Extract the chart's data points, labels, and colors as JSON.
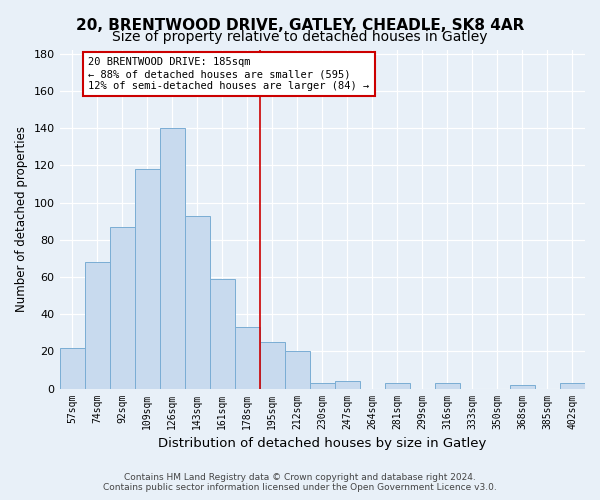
{
  "title": "20, BRENTWOOD DRIVE, GATLEY, CHEADLE, SK8 4AR",
  "subtitle": "Size of property relative to detached houses in Gatley",
  "xlabel": "Distribution of detached houses by size in Gatley",
  "ylabel": "Number of detached properties",
  "categories": [
    "57sqm",
    "74sqm",
    "92sqm",
    "109sqm",
    "126sqm",
    "143sqm",
    "161sqm",
    "178sqm",
    "195sqm",
    "212sqm",
    "230sqm",
    "247sqm",
    "264sqm",
    "281sqm",
    "299sqm",
    "316sqm",
    "333sqm",
    "350sqm",
    "368sqm",
    "385sqm",
    "402sqm"
  ],
  "values": [
    22,
    68,
    87,
    118,
    140,
    93,
    59,
    33,
    25,
    20,
    3,
    4,
    0,
    3,
    0,
    3,
    0,
    0,
    2,
    0,
    3
  ],
  "bar_color": "#c8daee",
  "bar_edge_color": "#7aadd4",
  "vline_x_index": 7.5,
  "vline_color": "#cc0000",
  "annotation_text": "20 BRENTWOOD DRIVE: 185sqm\n← 88% of detached houses are smaller (595)\n12% of semi-detached houses are larger (84) →",
  "annotation_box_color": "#ffffff",
  "annotation_box_edge": "#cc0000",
  "ylim": [
    0,
    182
  ],
  "yticks": [
    0,
    20,
    40,
    60,
    80,
    100,
    120,
    140,
    160,
    180
  ],
  "footer_line1": "Contains HM Land Registry data © Crown copyright and database right 2024.",
  "footer_line2": "Contains public sector information licensed under the Open Government Licence v3.0.",
  "background_color": "#e8f0f8",
  "title_fontsize": 11,
  "xlabel_fontsize": 9.5,
  "ylabel_fontsize": 8.5,
  "footer_fontsize": 6.5
}
